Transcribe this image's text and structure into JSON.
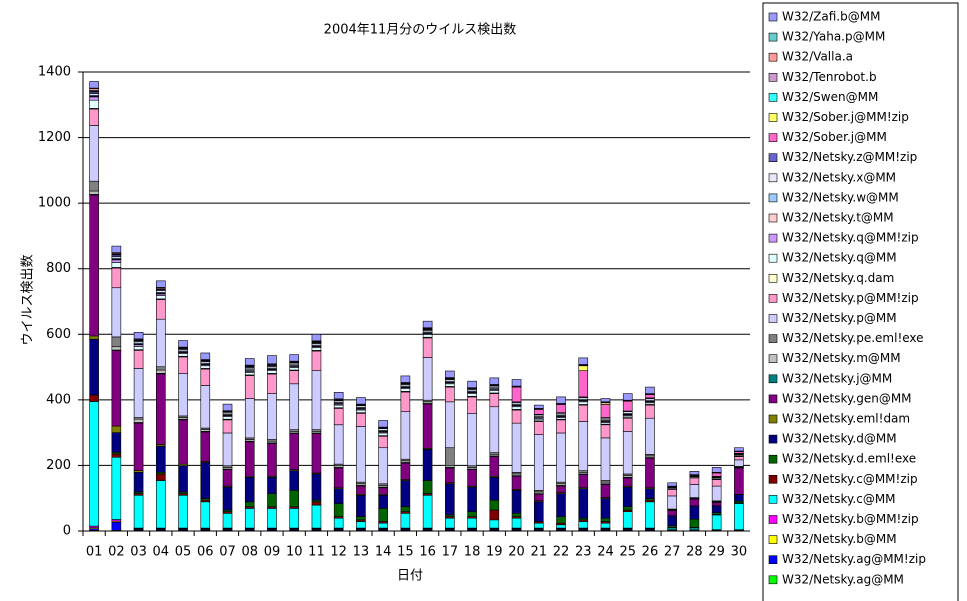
{
  "chart_data": {
    "type": "stacked-bar",
    "title": "2004年11月分のウイルス検出数",
    "x_label": "日付",
    "y_label": "ウイルス検出数",
    "ylim": [
      0,
      1400
    ],
    "yticks": [
      0,
      200,
      400,
      600,
      800,
      1000,
      1200,
      1400
    ],
    "grid": true,
    "categories": [
      "01",
      "02",
      "03",
      "04",
      "05",
      "06",
      "07",
      "08",
      "09",
      "10",
      "11",
      "12",
      "13",
      "14",
      "15",
      "16",
      "17",
      "18",
      "19",
      "20",
      "21",
      "22",
      "23",
      "24",
      "25",
      "26",
      "27",
      "28",
      "29",
      "30"
    ],
    "series": [
      {
        "name": "W32/Zafi.b@MM",
        "color": "#9999ff",
        "values": [
          20,
          20,
          20,
          20,
          20,
          20,
          20,
          20,
          25,
          20,
          20,
          20,
          20,
          20,
          20,
          20,
          20,
          20,
          20,
          20,
          10,
          20,
          20,
          10,
          20,
          20,
          10,
          10,
          15,
          10
        ]
      },
      {
        "name": "W32/Yaha.p@MM",
        "color": "#66cccc",
        "values": [
          2,
          1,
          0,
          1,
          0,
          0,
          0,
          1,
          0,
          0,
          1,
          0,
          0,
          0,
          0,
          1,
          0,
          0,
          0,
          0,
          0,
          0,
          0,
          0,
          0,
          0,
          0,
          0,
          0,
          0
        ]
      },
      {
        "name": "W32/Valla.a",
        "color": "#ff9999",
        "values": [
          5,
          3,
          2,
          3,
          2,
          2,
          1,
          2,
          2,
          2,
          2,
          2,
          1,
          1,
          2,
          2,
          2,
          1,
          1,
          1,
          1,
          1,
          2,
          1,
          1,
          1,
          0,
          0,
          1,
          1
        ]
      },
      {
        "name": "W32/Tenrobot.b",
        "color": "#cc99cc",
        "values": [
          3,
          2,
          2,
          2,
          2,
          1,
          1,
          2,
          2,
          1,
          2,
          1,
          1,
          1,
          1,
          2,
          1,
          1,
          1,
          1,
          1,
          1,
          1,
          1,
          1,
          1,
          0,
          0,
          0,
          1
        ]
      },
      {
        "name": "W32/Swen@MM",
        "color": "#33ffff",
        "values": [
          2,
          1,
          1,
          1,
          1,
          1,
          1,
          1,
          1,
          1,
          1,
          1,
          1,
          1,
          1,
          1,
          1,
          1,
          1,
          1,
          1,
          1,
          1,
          1,
          1,
          1,
          0,
          0,
          1,
          0
        ]
      },
      {
        "name": "W32/Sober.j@MM!zip",
        "color": "#ffff66",
        "values": [
          0,
          0,
          0,
          0,
          0,
          0,
          0,
          0,
          0,
          0,
          0,
          0,
          0,
          0,
          0,
          0,
          0,
          0,
          0,
          0,
          0,
          0,
          15,
          5,
          0,
          0,
          0,
          0,
          0,
          0
        ]
      },
      {
        "name": "W32/Sober.j@MM",
        "color": "#ff66cc",
        "values": [
          0,
          0,
          0,
          0,
          0,
          0,
          0,
          0,
          0,
          0,
          0,
          0,
          0,
          0,
          0,
          0,
          0,
          0,
          0,
          45,
          15,
          25,
          80,
          40,
          30,
          10,
          0,
          0,
          10,
          5
        ]
      },
      {
        "name": "W32/Netsky.z@MM!zip",
        "color": "#6666cc",
        "values": [
          5,
          5,
          3,
          3,
          2,
          2,
          2,
          3,
          3,
          2,
          2,
          2,
          2,
          2,
          2,
          2,
          2,
          2,
          2,
          2,
          2,
          2,
          2,
          2,
          2,
          2,
          1,
          1,
          1,
          1
        ]
      },
      {
        "name": "W32/Netsky.x@MM",
        "color": "#e6e6fa",
        "values": [
          5,
          5,
          5,
          5,
          5,
          5,
          5,
          5,
          5,
          5,
          5,
          5,
          5,
          5,
          5,
          5,
          5,
          5,
          5,
          5,
          5,
          5,
          5,
          5,
          5,
          5,
          2,
          2,
          2,
          2
        ]
      },
      {
        "name": "W32/Netsky.w@MM",
        "color": "#99ccff",
        "values": [
          3,
          3,
          3,
          3,
          3,
          3,
          3,
          3,
          3,
          3,
          3,
          3,
          3,
          3,
          3,
          3,
          3,
          3,
          3,
          3,
          3,
          3,
          3,
          3,
          3,
          3,
          1,
          1,
          1,
          1
        ]
      },
      {
        "name": "W32/Netsky.t@MM",
        "color": "#ffcccc",
        "values": [
          2,
          2,
          2,
          2,
          2,
          2,
          2,
          2,
          2,
          2,
          2,
          2,
          2,
          2,
          2,
          2,
          2,
          2,
          2,
          2,
          2,
          2,
          2,
          2,
          2,
          2,
          1,
          1,
          1,
          1
        ]
      },
      {
        "name": "W32/Netsky.q@MM!zip",
        "color": "#cc99ff",
        "values": [
          10,
          8,
          5,
          5,
          3,
          3,
          3,
          3,
          3,
          3,
          3,
          3,
          3,
          3,
          3,
          3,
          3,
          3,
          3,
          3,
          3,
          3,
          3,
          3,
          3,
          3,
          1,
          1,
          1,
          1
        ]
      },
      {
        "name": "W32/Netsky.q@MM",
        "color": "#e0ffff",
        "values": [
          25,
          15,
          10,
          10,
          8,
          8,
          8,
          8,
          8,
          8,
          8,
          8,
          8,
          8,
          8,
          8,
          8,
          8,
          8,
          8,
          5,
          5,
          8,
          5,
          5,
          5,
          3,
          3,
          3,
          3
        ]
      },
      {
        "name": "W32/Netsky.q.dam",
        "color": "#ffffcc",
        "values": [
          2,
          2,
          2,
          2,
          2,
          2,
          2,
          2,
          2,
          2,
          2,
          2,
          2,
          2,
          2,
          2,
          2,
          2,
          2,
          2,
          2,
          2,
          2,
          2,
          2,
          2,
          1,
          1,
          1,
          1
        ]
      },
      {
        "name": "W32/Netsky.p@MM!zip",
        "color": "#ff99cc",
        "values": [
          50,
          60,
          55,
          60,
          50,
          50,
          40,
          70,
          60,
          40,
          60,
          50,
          40,
          35,
          60,
          60,
          45,
          50,
          40,
          40,
          40,
          40,
          50,
          40,
          40,
          40,
          20,
          20,
          20,
          10
        ]
      },
      {
        "name": "W32/Netsky.p@MM",
        "color": "#ccccff",
        "values": [
          170,
          150,
          150,
          145,
          130,
          130,
          100,
          120,
          140,
          140,
          180,
          120,
          170,
          110,
          145,
          130,
          140,
          160,
          140,
          150,
          170,
          150,
          150,
          130,
          130,
          110,
          40,
          40,
          45,
          20
        ]
      },
      {
        "name": "W32/Netsky.pe.eml!exe",
        "color": "#808080",
        "values": [
          30,
          30,
          5,
          10,
          5,
          5,
          5,
          5,
          5,
          5,
          5,
          5,
          5,
          5,
          5,
          5,
          55,
          5,
          5,
          5,
          5,
          5,
          5,
          5,
          5,
          5,
          2,
          2,
          2,
          2
        ]
      },
      {
        "name": "W32/Netsky.m@MM",
        "color": "#c0c0c0",
        "values": [
          10,
          10,
          10,
          10,
          5,
          5,
          5,
          5,
          5,
          5,
          5,
          5,
          5,
          5,
          5,
          5,
          5,
          5,
          5,
          5,
          5,
          5,
          5,
          5,
          5,
          5,
          2,
          2,
          2,
          2
        ]
      },
      {
        "name": "W32/Netsky.j@MM",
        "color": "#008080",
        "values": [
          2,
          2,
          2,
          2,
          2,
          2,
          2,
          2,
          2,
          2,
          2,
          2,
          2,
          2,
          2,
          2,
          2,
          2,
          2,
          2,
          2,
          2,
          2,
          2,
          2,
          2,
          1,
          1,
          1,
          1
        ]
      },
      {
        "name": "W32/Netsky.gen@MM",
        "color": "#800080",
        "values": [
          430,
          230,
          145,
          215,
          135,
          90,
          50,
          105,
          100,
          110,
          120,
          60,
          25,
          20,
          50,
          135,
          45,
          50,
          60,
          40,
          20,
          20,
          40,
          40,
          25,
          90,
          15,
          20,
          10,
          80
        ]
      },
      {
        "name": "W32/Netsky.eml!dam",
        "color": "#808000",
        "values": [
          10,
          20,
          5,
          5,
          5,
          3,
          3,
          3,
          3,
          3,
          3,
          3,
          3,
          3,
          3,
          3,
          3,
          3,
          3,
          3,
          3,
          3,
          3,
          3,
          3,
          3,
          1,
          1,
          1,
          1
        ]
      },
      {
        "name": "W32/Netsky.d@MM",
        "color": "#000080",
        "values": [
          170,
          60,
          60,
          80,
          80,
          110,
          70,
          75,
          50,
          60,
          80,
          45,
          65,
          40,
          80,
          95,
          95,
          75,
          70,
          70,
          60,
          70,
          90,
          60,
          60,
          30,
          30,
          40,
          20,
          20
        ]
      },
      {
        "name": "W32/Netsky.d.eml!exe",
        "color": "#006400",
        "values": [
          0,
          5,
          5,
          5,
          5,
          5,
          5,
          15,
          40,
          50,
          5,
          40,
          10,
          40,
          15,
          40,
          5,
          15,
          30,
          10,
          0,
          20,
          5,
          10,
          10,
          5,
          5,
          25,
          5,
          5
        ]
      },
      {
        "name": "W32/Netsky.c@MM!zip",
        "color": "#800000",
        "values": [
          20,
          10,
          5,
          20,
          5,
          5,
          5,
          5,
          5,
          5,
          10,
          5,
          5,
          5,
          5,
          5,
          5,
          5,
          30,
          5,
          5,
          5,
          5,
          5,
          5,
          5,
          2,
          2,
          2,
          2
        ]
      },
      {
        "name": "W32/Netsky.c@MM",
        "color": "#00ffff",
        "values": [
          380,
          190,
          100,
          145,
          100,
          80,
          45,
          60,
          60,
          60,
          70,
          30,
          20,
          15,
          45,
          100,
          30,
          30,
          25,
          30,
          15,
          10,
          20,
          15,
          50,
          80,
          5,
          5,
          45,
          80
        ]
      },
      {
        "name": "W32/Netsky.b@MM!zip",
        "color": "#ff00ff",
        "values": [
          5,
          5,
          2,
          2,
          2,
          2,
          2,
          2,
          2,
          2,
          2,
          2,
          2,
          2,
          2,
          2,
          2,
          2,
          2,
          2,
          2,
          2,
          2,
          2,
          2,
          2,
          1,
          1,
          1,
          1
        ]
      },
      {
        "name": "W32/Netsky.b@MM",
        "color": "#ffff00",
        "values": [
          3,
          3,
          2,
          2,
          2,
          2,
          2,
          2,
          2,
          2,
          2,
          2,
          2,
          2,
          2,
          2,
          2,
          2,
          2,
          2,
          2,
          2,
          2,
          2,
          2,
          2,
          1,
          1,
          1,
          1
        ]
      },
      {
        "name": "W32/Netsky.ag@MM!zip",
        "color": "#0000ff",
        "values": [
          5,
          25,
          3,
          3,
          3,
          3,
          3,
          3,
          3,
          3,
          3,
          3,
          3,
          3,
          3,
          3,
          3,
          3,
          3,
          3,
          3,
          3,
          3,
          3,
          3,
          3,
          1,
          1,
          1,
          1
        ]
      },
      {
        "name": "W32/Netsky.ag@MM",
        "color": "#00ff00",
        "values": [
          2,
          2,
          2,
          2,
          2,
          2,
          2,
          2,
          2,
          2,
          2,
          2,
          2,
          2,
          2,
          2,
          2,
          2,
          2,
          2,
          2,
          2,
          2,
          2,
          2,
          2,
          1,
          1,
          1,
          1
        ]
      }
    ]
  }
}
